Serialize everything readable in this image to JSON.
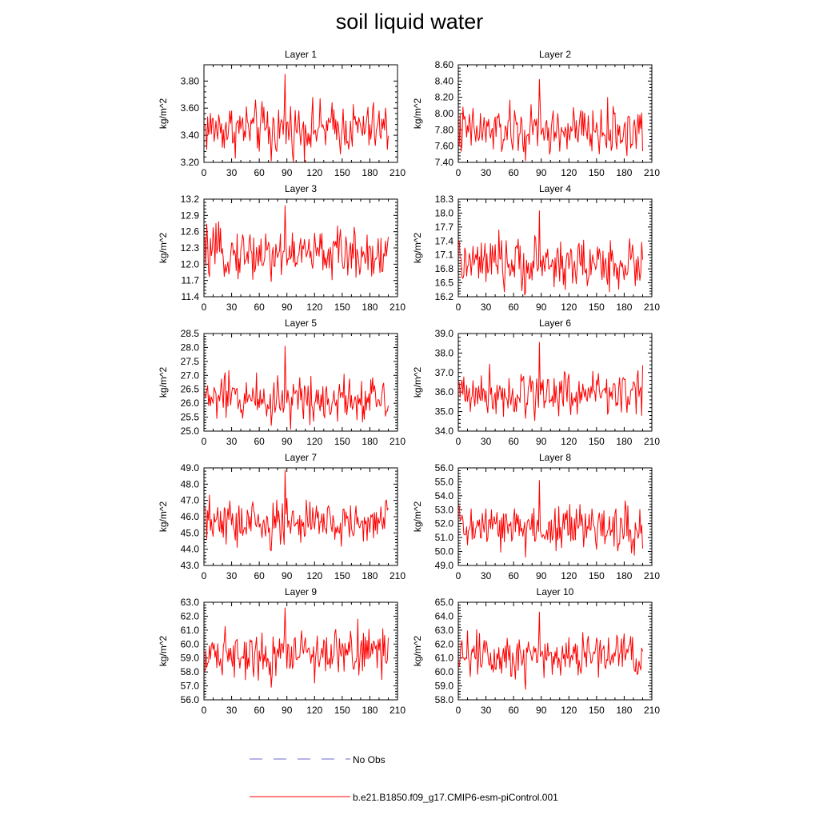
{
  "title": "soil liquid water",
  "colors": {
    "series": "#ff0000",
    "obs": "#6a6acd",
    "axis": "#000000"
  },
  "legend": {
    "obs_label": "No Obs",
    "series_label": "b.e21.B1850.f09_g17.CMIP6-esm-piControl.001"
  },
  "chart_data": [
    {
      "type": "line",
      "title": "Layer 1",
      "ylabel": "kg/m^2",
      "xlim": [
        0,
        210
      ],
      "ylim": [
        3.2,
        3.92
      ],
      "xticks": [
        "0",
        "30",
        "60",
        "90",
        "120",
        "150",
        "180",
        "210"
      ],
      "yticks": [
        "3.20",
        "3.40",
        "3.60",
        "3.80"
      ],
      "yticks_values": [
        3.2,
        3.4,
        3.6,
        3.8
      ],
      "series": [
        {
          "name": "b.e21.B1850.f09_g17.CMIP6-esm-piControl.001",
          "mean": 3.45,
          "amp": 0.11,
          "peak_x": 88,
          "peak_y": 3.85,
          "min_y": 3.21
        }
      ]
    },
    {
      "type": "line",
      "title": "Layer 2",
      "ylabel": "kg/m^2",
      "xlim": [
        0,
        210
      ],
      "ylim": [
        7.4,
        8.6
      ],
      "xticks": [
        "0",
        "30",
        "60",
        "90",
        "120",
        "150",
        "180",
        "210"
      ],
      "yticks": [
        "7.40",
        "7.60",
        "7.80",
        "8.00",
        "8.20",
        "8.40",
        "8.60"
      ],
      "yticks_values": [
        7.4,
        7.6,
        7.8,
        8.0,
        8.2,
        8.4,
        8.6
      ],
      "series": [
        {
          "name": "b.e21.B1850.f09_g17.CMIP6-esm-piControl.001",
          "mean": 7.78,
          "amp": 0.18,
          "peak_x": 88,
          "peak_y": 8.42,
          "min_y": 7.42
        }
      ]
    },
    {
      "type": "line",
      "title": "Layer 3",
      "ylabel": "kg/m^2",
      "xlim": [
        0,
        210
      ],
      "ylim": [
        11.4,
        13.2
      ],
      "xticks": [
        "0",
        "30",
        "60",
        "90",
        "120",
        "150",
        "180",
        "210"
      ],
      "yticks": [
        "11.4",
        "11.7",
        "12.0",
        "12.3",
        "12.6",
        "12.9",
        "13.2"
      ],
      "yticks_values": [
        11.4,
        11.7,
        12.0,
        12.3,
        12.6,
        12.9,
        13.2
      ],
      "series": [
        {
          "name": "b.e21.B1850.f09_g17.CMIP6-esm-piControl.001",
          "mean": 12.2,
          "amp": 0.26,
          "peak_x": 88,
          "peak_y": 13.08,
          "min_y": 11.68
        }
      ]
    },
    {
      "type": "line",
      "title": "Layer 4",
      "ylabel": "kg/m^2",
      "xlim": [
        0,
        210
      ],
      "ylim": [
        16.2,
        18.3
      ],
      "xticks": [
        "0",
        "30",
        "60",
        "90",
        "120",
        "150",
        "180",
        "210"
      ],
      "yticks": [
        "16.2",
        "16.5",
        "16.8",
        "17.1",
        "17.4",
        "17.7",
        "18.0",
        "18.3"
      ],
      "yticks_values": [
        16.2,
        16.5,
        16.8,
        17.1,
        17.4,
        17.7,
        18.0,
        18.3
      ],
      "series": [
        {
          "name": "b.e21.B1850.f09_g17.CMIP6-esm-piControl.001",
          "mean": 16.9,
          "amp": 0.32,
          "peak_x": 88,
          "peak_y": 18.05,
          "min_y": 16.3
        }
      ]
    },
    {
      "type": "line",
      "title": "Layer 5",
      "ylabel": "kg/m^2",
      "xlim": [
        0,
        210
      ],
      "ylim": [
        25.0,
        28.5
      ],
      "xticks": [
        "0",
        "30",
        "60",
        "90",
        "120",
        "150",
        "180",
        "210"
      ],
      "yticks": [
        "25.0",
        "25.5",
        "26.0",
        "26.5",
        "27.0",
        "27.5",
        "28.0",
        "28.5"
      ],
      "yticks_values": [
        25.0,
        25.5,
        26.0,
        26.5,
        27.0,
        27.5,
        28.0,
        28.5
      ],
      "series": [
        {
          "name": "b.e21.B1850.f09_g17.CMIP6-esm-piControl.001",
          "mean": 26.2,
          "amp": 0.5,
          "peak_x": 88,
          "peak_y": 28.05,
          "min_y": 25.2
        }
      ]
    },
    {
      "type": "line",
      "title": "Layer 6",
      "ylabel": "kg/m^2",
      "xlim": [
        0,
        210
      ],
      "ylim": [
        34.0,
        39.0
      ],
      "xticks": [
        "0",
        "30",
        "60",
        "90",
        "120",
        "150",
        "180",
        "210"
      ],
      "yticks": [
        "34.0",
        "35.0",
        "36.0",
        "37.0",
        "38.0",
        "39.0"
      ],
      "yticks_values": [
        34.0,
        35.0,
        36.0,
        37.0,
        38.0,
        39.0
      ],
      "series": [
        {
          "name": "b.e21.B1850.f09_g17.CMIP6-esm-piControl.001",
          "mean": 36.0,
          "amp": 0.7,
          "peak_x": 88,
          "peak_y": 38.55,
          "min_y": 34.65
        }
      ]
    },
    {
      "type": "line",
      "title": "Layer 7",
      "ylabel": "kg/m^2",
      "xlim": [
        0,
        210
      ],
      "ylim": [
        43.0,
        49.0
      ],
      "xticks": [
        "0",
        "30",
        "60",
        "90",
        "120",
        "150",
        "180",
        "210"
      ],
      "yticks": [
        "43.0",
        "44.0",
        "45.0",
        "46.0",
        "47.0",
        "48.0",
        "49.0"
      ],
      "yticks_values": [
        43.0,
        44.0,
        45.0,
        46.0,
        47.0,
        48.0,
        49.0
      ],
      "series": [
        {
          "name": "b.e21.B1850.f09_g17.CMIP6-esm-piControl.001",
          "mean": 45.6,
          "amp": 0.85,
          "peak_x": 88,
          "peak_y": 48.85,
          "min_y": 43.9
        }
      ]
    },
    {
      "type": "line",
      "title": "Layer 8",
      "ylabel": "kg/m^2",
      "xlim": [
        0,
        210
      ],
      "ylim": [
        49.0,
        56.0
      ],
      "xticks": [
        "0",
        "30",
        "60",
        "90",
        "120",
        "150",
        "180",
        "210"
      ],
      "yticks": [
        "49.0",
        "50.0",
        "51.0",
        "52.0",
        "53.0",
        "54.0",
        "55.0",
        "56.0"
      ],
      "yticks_values": [
        49.0,
        50.0,
        51.0,
        52.0,
        53.0,
        54.0,
        55.0,
        56.0
      ],
      "series": [
        {
          "name": "b.e21.B1850.f09_g17.CMIP6-esm-piControl.001",
          "mean": 51.7,
          "amp": 1.0,
          "peak_x": 88,
          "peak_y": 55.1,
          "min_y": 49.6
        }
      ]
    },
    {
      "type": "line",
      "title": "Layer 9",
      "ylabel": "kg/m^2",
      "xlim": [
        0,
        210
      ],
      "ylim": [
        56.0,
        63.0
      ],
      "xticks": [
        "0",
        "30",
        "60",
        "90",
        "120",
        "150",
        "180",
        "210"
      ],
      "yticks": [
        "56.0",
        "57.0",
        "58.0",
        "59.0",
        "60.0",
        "61.0",
        "62.0",
        "63.0"
      ],
      "yticks_values": [
        56.0,
        57.0,
        58.0,
        59.0,
        60.0,
        61.0,
        62.0,
        63.0
      ],
      "series": [
        {
          "name": "b.e21.B1850.f09_g17.CMIP6-esm-piControl.001",
          "mean": 59.4,
          "amp": 1.0,
          "peak_x": 88,
          "peak_y": 62.6,
          "min_y": 56.9
        }
      ]
    },
    {
      "type": "line",
      "title": "Layer 10",
      "ylabel": "kg/m^2",
      "xlim": [
        0,
        210
      ],
      "ylim": [
        58.0,
        65.0
      ],
      "xticks": [
        "0",
        "30",
        "60",
        "90",
        "120",
        "150",
        "180",
        "210"
      ],
      "yticks": [
        "58.0",
        "59.0",
        "60.0",
        "61.0",
        "62.0",
        "63.0",
        "64.0",
        "65.0"
      ],
      "yticks_values": [
        58.0,
        59.0,
        60.0,
        61.0,
        62.0,
        63.0,
        64.0,
        65.0
      ],
      "series": [
        {
          "name": "b.e21.B1850.f09_g17.CMIP6-esm-piControl.001",
          "mean": 61.3,
          "amp": 1.0,
          "peak_x": 88,
          "peak_y": 64.3,
          "min_y": 58.75
        }
      ]
    }
  ]
}
